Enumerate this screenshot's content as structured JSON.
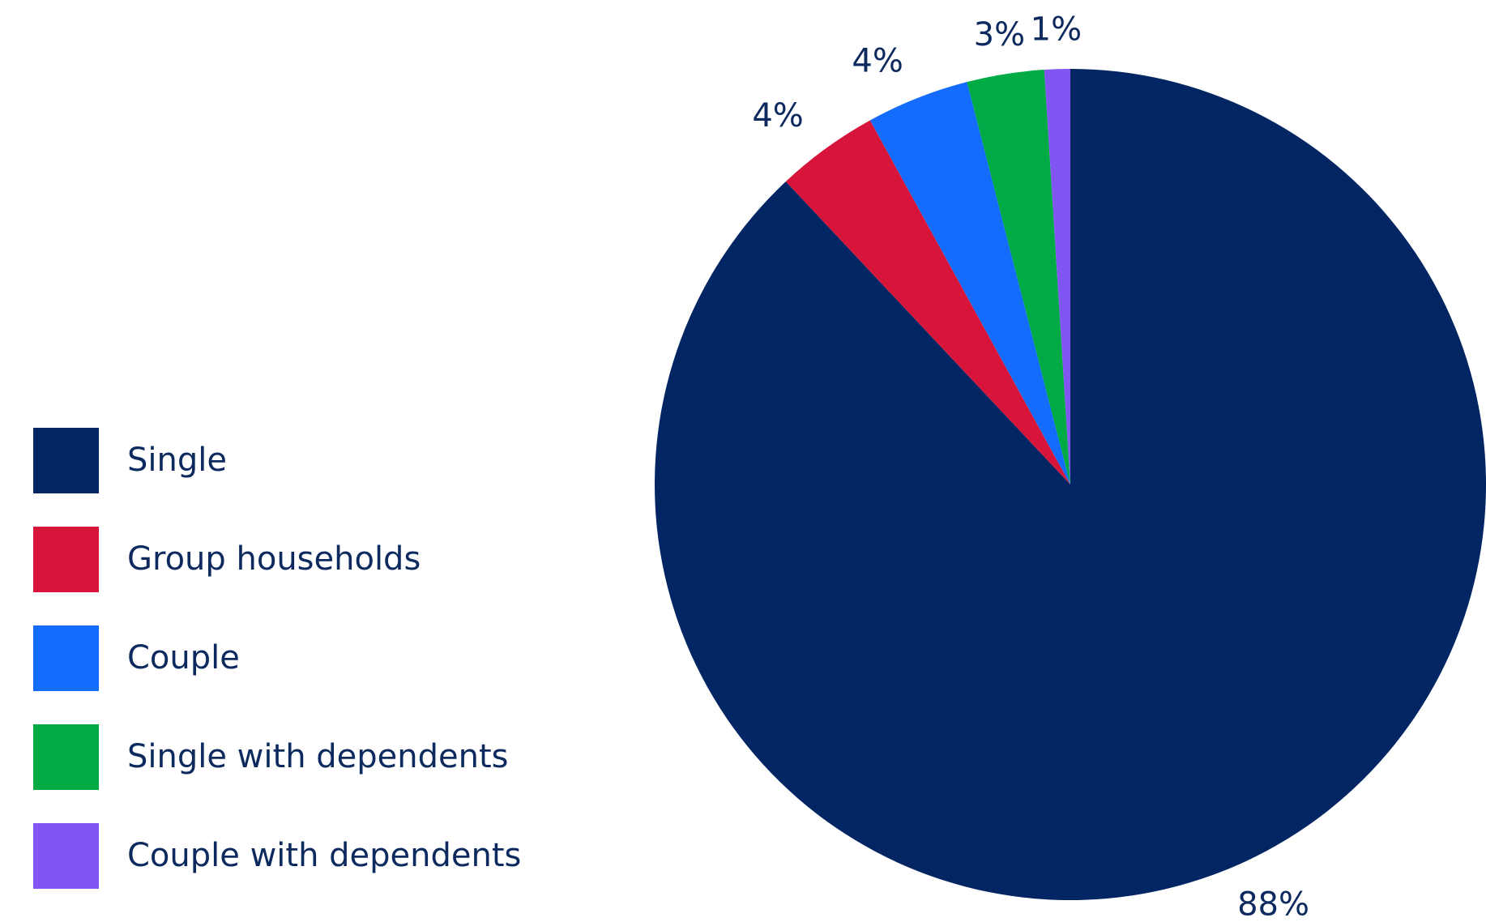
{
  "chart_data": {
    "type": "pie",
    "categories": [
      "Single",
      "Group households",
      "Couple",
      "Single with dependents",
      "Couple with dependents"
    ],
    "values": [
      88,
      4,
      4,
      3,
      1
    ],
    "value_labels": [
      "88%",
      "4%",
      "4%",
      "3%",
      "1%"
    ],
    "colors": [
      "#022563",
      "#d7153a",
      "#146cfd",
      "#00aa45",
      "#8055f1"
    ],
    "legend": "left",
    "start_angle_deg": 0,
    "direction": "clockwise"
  }
}
